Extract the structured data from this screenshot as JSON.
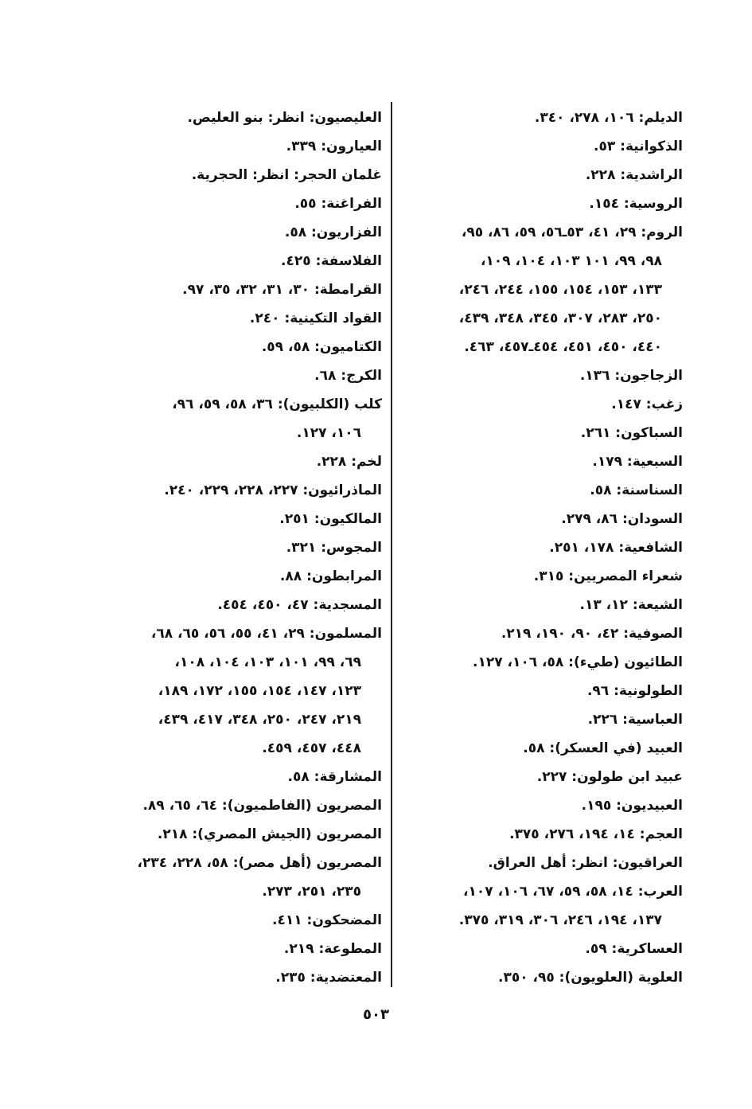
{
  "right_column": [
    {
      "text": "الديلم: ١٠٦، ٢٧٨، ٣٤٠.",
      "cont": false
    },
    {
      "text": "الذكوانية: ٥٣.",
      "cont": false
    },
    {
      "text": "الراشدية: ٢٢٨.",
      "cont": false
    },
    {
      "text": "الروسية: ١٥٤.",
      "cont": false
    },
    {
      "text": "الروم: ٢٩، ٤١، ٥٣ـ٥٦، ٥٩، ٨٦، ٩٥،",
      "cont": false
    },
    {
      "text": "٩٨، ٩٩، ١٠١ ١٠٣، ١٠٤، ١٠٩،",
      "cont": true
    },
    {
      "text": "١٣٣، ١٥٣، ١٥٤، ١٥٥، ٢٤٤، ٢٤٦،",
      "cont": true
    },
    {
      "text": "٢٥٠، ٢٨٣، ٣٠٧، ٣٤٥، ٣٤٨، ٤٣٩،",
      "cont": true
    },
    {
      "text": "٤٤٠، ٤٥٠، ٤٥١، ٤٥٤ـ٤٥٧، ٤٦٣.",
      "cont": true
    },
    {
      "text": "الزجاجون: ١٣٦.",
      "cont": false
    },
    {
      "text": "زغب: ١٤٧.",
      "cont": false
    },
    {
      "text": "السباكون: ٢٦١.",
      "cont": false
    },
    {
      "text": "السبعية: ١٧٩.",
      "cont": false
    },
    {
      "text": "السناسنة: ٥٨.",
      "cont": false
    },
    {
      "text": "السودان: ٨٦، ٢٧٩.",
      "cont": false
    },
    {
      "text": "الشافعية: ١٧٨، ٢٥١.",
      "cont": false
    },
    {
      "text": "شعراء المصريين: ٣١٥.",
      "cont": false
    },
    {
      "text": "الشيعة: ١٢، ١٣.",
      "cont": false
    },
    {
      "text": "الصوفية: ٤٢، ٩٠، ١٩٠، ٢١٩.",
      "cont": false
    },
    {
      "text": "الطائيون (طيء): ٥٨، ١٠٦، ١٢٧.",
      "cont": false
    },
    {
      "text": "الطولونية: ٩٦.",
      "cont": false
    },
    {
      "text": "العباسية: ٢٢٦.",
      "cont": false
    },
    {
      "text": "العبيد (في العسكر): ٥٨.",
      "cont": false
    },
    {
      "text": "عبيد ابن طولون: ٢٢٧.",
      "cont": false
    },
    {
      "text": "العبيديون: ١٩٥.",
      "cont": false
    },
    {
      "text": "العجم: ١٤، ١٩٤، ٢٧٦، ٣٧٥.",
      "cont": false
    },
    {
      "text": "العراقيون: انظر: أهل العراق.",
      "cont": false
    },
    {
      "text": "العرب: ١٤، ٥٨، ٥٩، ٦٧، ١٠٦، ١٠٧،",
      "cont": false
    },
    {
      "text": "١٣٧، ١٩٤، ٢٤٦، ٣٠٦، ٣١٩، ٣٧٥.",
      "cont": true
    },
    {
      "text": "العساكرية: ٥٩.",
      "cont": false
    },
    {
      "text": "العلوية (العلويون): ٩٥، ٣٥٠.",
      "cont": false
    }
  ],
  "left_column": [
    {
      "text": "العليصيون: انظر: بنو العليص.",
      "cont": false
    },
    {
      "text": "العيارون: ٣٣٩.",
      "cont": false
    },
    {
      "text": "غلمان الحجر: انظر: الحجرية.",
      "cont": false
    },
    {
      "text": "الفراغنة: ٥٥.",
      "cont": false
    },
    {
      "text": "الفزاريون: ٥٨.",
      "cont": false
    },
    {
      "text": "الفلاسفة: ٤٢٥.",
      "cont": false
    },
    {
      "text": "القرامطة: ٣٠، ٣١، ٣٢، ٣٥، ٩٧.",
      "cont": false
    },
    {
      "text": "القواد التكينية: ٢٤٠.",
      "cont": false
    },
    {
      "text": "الكتاميون: ٥٨، ٥٩.",
      "cont": false
    },
    {
      "text": "الكرج: ٦٨.",
      "cont": false
    },
    {
      "text": "كلب (الكلبيون): ٣٦، ٥٨، ٥٩، ٩٦،",
      "cont": false
    },
    {
      "text": "١٠٦، ١٢٧.",
      "cont": true
    },
    {
      "text": "لخم: ٢٢٨.",
      "cont": false
    },
    {
      "text": "الماذرائيون: ٢٢٧، ٢٢٨، ٢٢٩، ٢٤٠.",
      "cont": false
    },
    {
      "text": "المالكيون: ٢٥١.",
      "cont": false
    },
    {
      "text": "المجوس: ٣٢١.",
      "cont": false
    },
    {
      "text": "المرابطون: ٨٨.",
      "cont": false
    },
    {
      "text": "المسجدية: ٤٧، ٤٥٠، ٤٥٤.",
      "cont": false
    },
    {
      "text": "المسلمون: ٢٩، ٤١، ٥٥، ٥٦، ٦٥، ٦٨،",
      "cont": false
    },
    {
      "text": "٦٩، ٩٩، ١٠١، ١٠٣، ١٠٤، ١٠٨،",
      "cont": true
    },
    {
      "text": "١٢٣، ١٤٧، ١٥٤، ١٥٥، ١٧٢، ١٨٩،",
      "cont": true
    },
    {
      "text": "٢١٩، ٢٤٧، ٢٥٠، ٣٤٨، ٤١٧، ٤٣٩،",
      "cont": true
    },
    {
      "text": "٤٤٨، ٤٥٧، ٤٥٩.",
      "cont": true
    },
    {
      "text": "المشارقة: ٥٨.",
      "cont": false
    },
    {
      "text": "المصريون (الفاطميون): ٦٤، ٦٥، ٨٩.",
      "cont": false
    },
    {
      "text": "المصريون (الجيش المصري): ٢١٨.",
      "cont": false
    },
    {
      "text": "المصريون (أهل مصر): ٥٨، ٢٢٨، ٢٣٤،",
      "cont": false
    },
    {
      "text": "٢٣٥، ٢٥١، ٢٧٣.",
      "cont": true
    },
    {
      "text": "المضحكون: ٤١١.",
      "cont": false
    },
    {
      "text": "المطوعة: ٢١٩.",
      "cont": false
    },
    {
      "text": "المعتضدية: ٢٣٥.",
      "cont": false
    }
  ],
  "page_number": "٥٠٣"
}
